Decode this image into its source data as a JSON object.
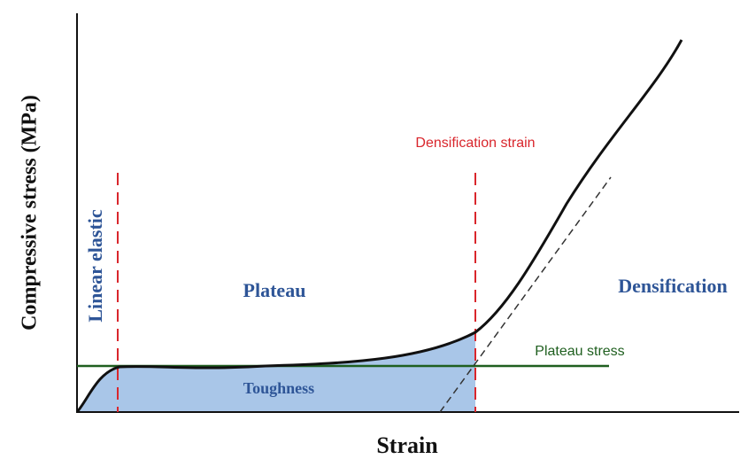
{
  "axes": {
    "y_label": "Compressive stress (MPa)",
    "x_label": "Strain"
  },
  "regions": {
    "linear_elastic": "Linear elastic",
    "plateau": "Plateau",
    "densification": "Densification"
  },
  "annotations": {
    "densification_strain": "Densification strain",
    "plateau_stress": "Plateau stress",
    "toughness": "Toughness"
  }
}
